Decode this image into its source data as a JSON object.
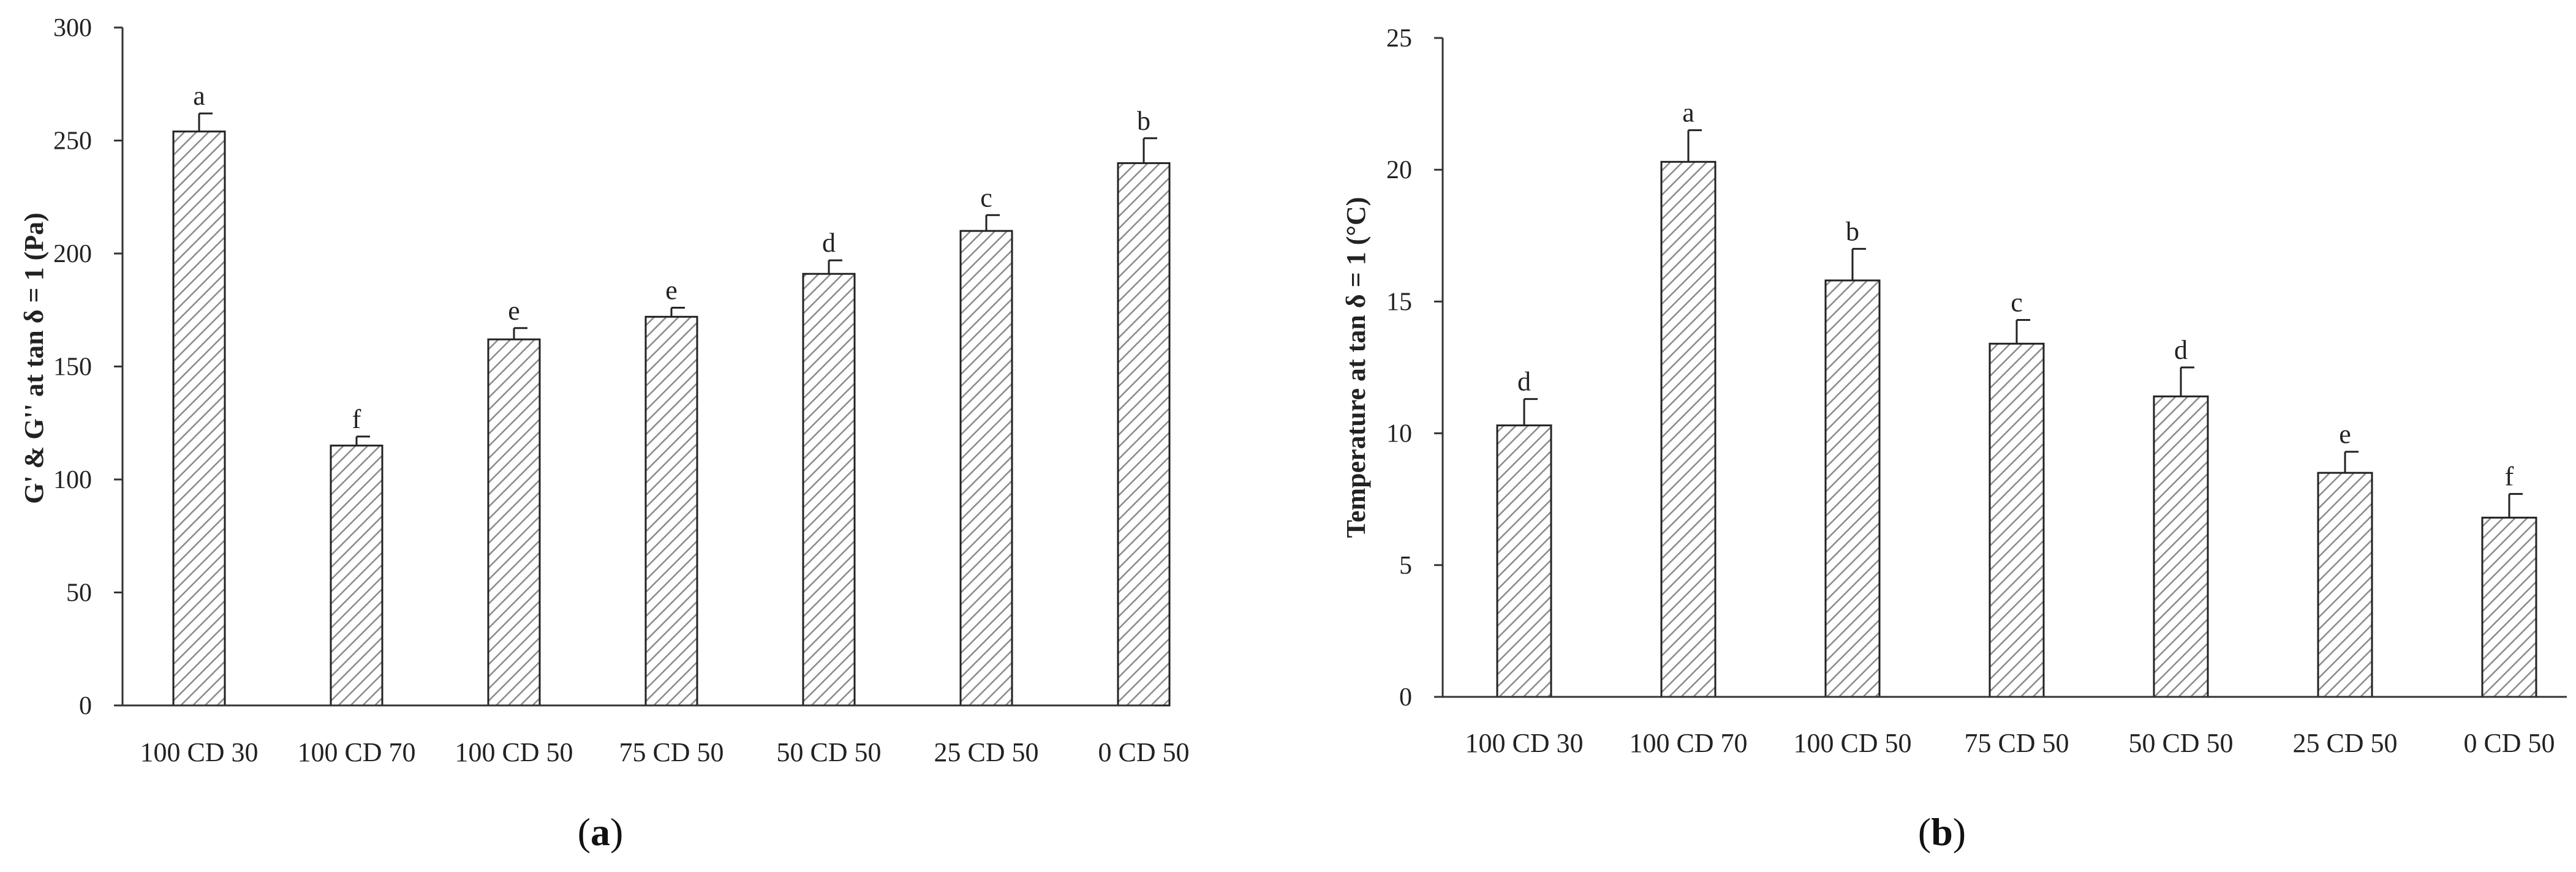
{
  "chart_data": [
    {
      "type": "bar",
      "panel_label": "a",
      "ylabel": "G' & G'' at tan δ = 1 (Pa)",
      "xlabel": "",
      "ylim": [
        0,
        300
      ],
      "yticks": [
        0,
        50,
        100,
        150,
        200,
        250,
        300
      ],
      "grid": false,
      "categories": [
        "100 CD 30",
        "100 CD 70",
        "100 CD 50",
        "75 CD 50",
        "50 CD 50",
        "25 CD 50",
        "0 CD 50"
      ],
      "values": [
        254,
        115,
        162,
        172,
        191,
        210,
        240
      ],
      "errors": [
        8,
        4,
        5,
        4,
        6,
        7,
        11
      ],
      "significance_letters": [
        "a",
        "f",
        "e",
        "e",
        "d",
        "c",
        "b"
      ]
    },
    {
      "type": "bar",
      "panel_label": "b",
      "ylabel": "Temperature at tan δ = 1 (°C)",
      "xlabel": "",
      "ylim": [
        0,
        25
      ],
      "yticks": [
        0,
        5,
        10,
        15,
        20,
        25
      ],
      "grid": false,
      "categories": [
        "100 CD 30",
        "100 CD 70",
        "100 CD 50",
        "75 CD 50",
        "50 CD 50",
        "25 CD 50",
        "0 CD 50"
      ],
      "values": [
        10.3,
        20.3,
        15.8,
        13.4,
        11.4,
        8.5,
        6.8
      ],
      "errors": [
        1.0,
        1.2,
        1.2,
        0.9,
        1.1,
        0.8,
        0.9
      ],
      "significance_letters": [
        "d",
        "a",
        "b",
        "c",
        "d",
        "e",
        "f"
      ]
    }
  ],
  "colors": {
    "bar_fill": "#ffffff",
    "bar_hatch": "#8a8a8a",
    "bar_stroke": "#222222",
    "axis": "#333333"
  }
}
